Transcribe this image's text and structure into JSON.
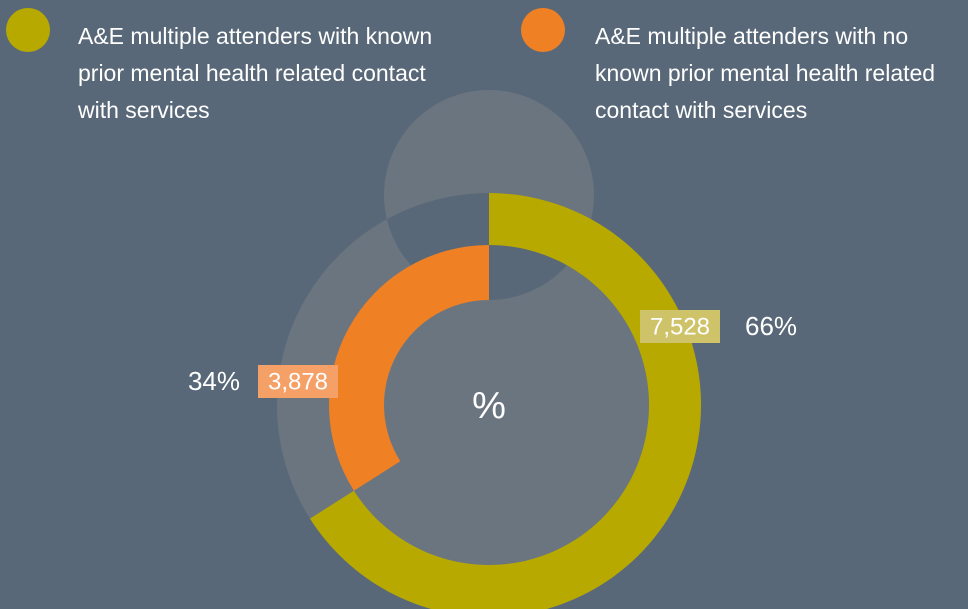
{
  "chart_data": {
    "type": "donut",
    "center_label": "%",
    "series": [
      {
        "name": "A&E multiple attenders with known prior mental health related contact with services",
        "color": "#b8a900",
        "label_color": "#cfc36a",
        "value": 66,
        "value_label": "66%",
        "count": 7528,
        "count_label": "7,528"
      },
      {
        "name": "A&E multiple attenders with no known prior mental health related contact with services",
        "color": "#f08024",
        "label_color": "#f4a066",
        "value": 34,
        "value_label": "34%",
        "count": 3878,
        "count_label": "3,878"
      }
    ],
    "ylim": [
      0,
      100
    ]
  }
}
